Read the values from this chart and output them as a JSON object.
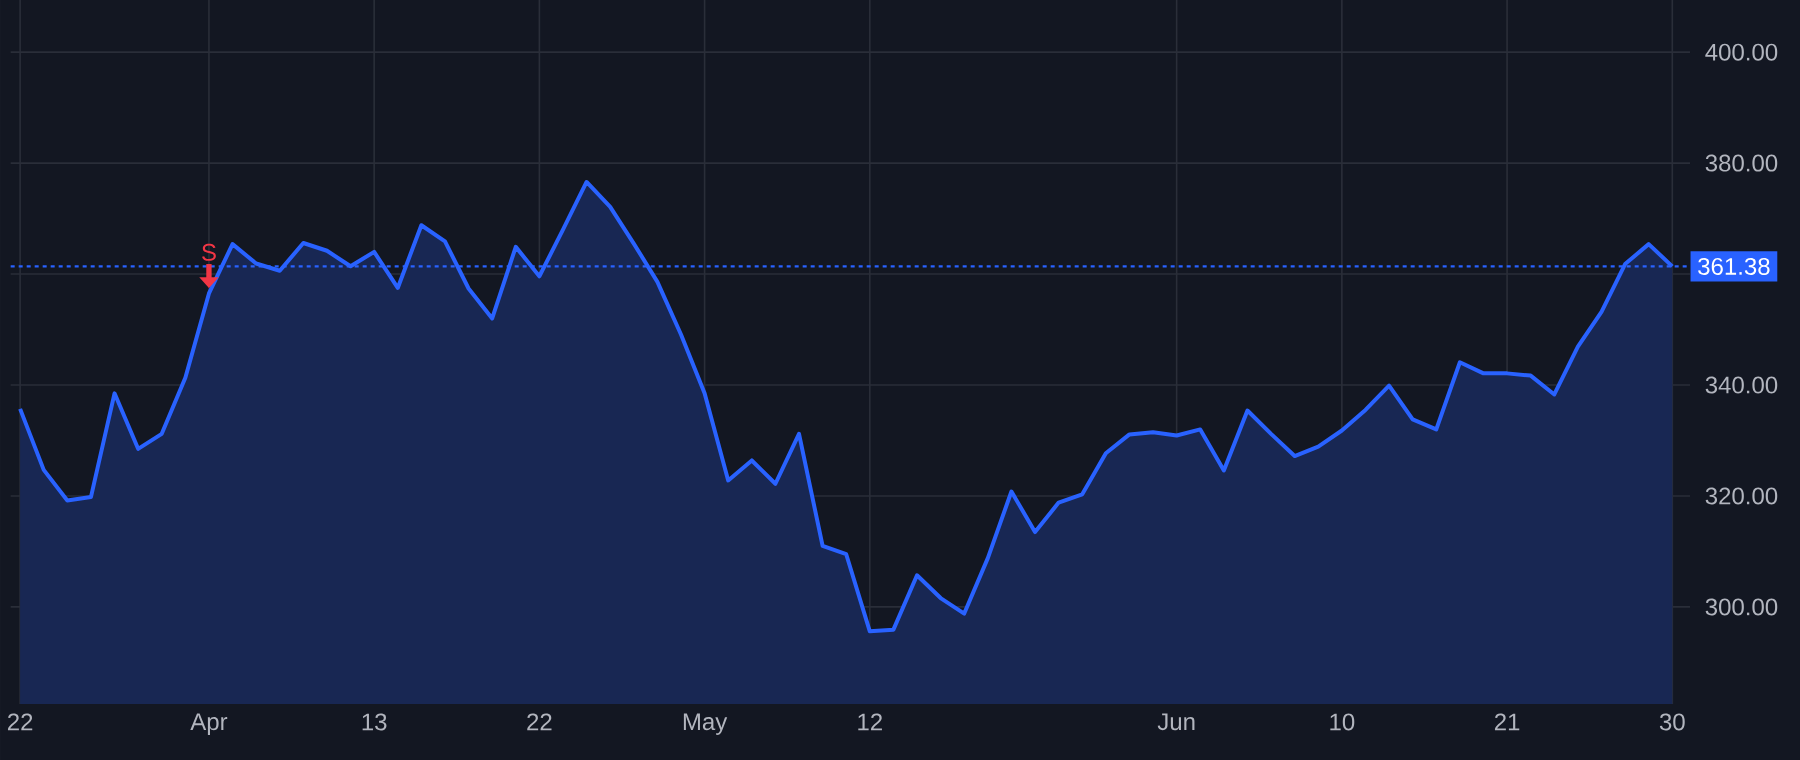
{
  "chart_data": {
    "type": "area",
    "categories": [
      "22",
      null,
      null,
      null,
      null,
      null,
      null,
      null,
      "Apr",
      null,
      null,
      null,
      null,
      null,
      null,
      "13",
      null,
      null,
      null,
      null,
      null,
      null,
      "22",
      null,
      null,
      null,
      null,
      null,
      null,
      "May",
      null,
      null,
      null,
      null,
      null,
      null,
      "12",
      null,
      null,
      null,
      null,
      null,
      null,
      null,
      null,
      null,
      null,
      null,
      null,
      "Jun",
      null,
      null,
      null,
      null,
      null,
      null,
      "10",
      null,
      null,
      null,
      null,
      null,
      null,
      "21",
      null,
      null,
      null,
      null,
      null,
      null,
      "30"
    ],
    "series": [
      {
        "color": "#2962ff",
        "values": [
          335.7,
          324.7,
          319.2,
          319.8,
          338.5,
          328.5,
          331.2,
          341.3,
          356.5,
          365.4,
          361.9,
          360.6,
          365.6,
          364.2,
          361.4,
          364.0,
          357.5,
          368.8,
          365.9,
          357.4,
          352.0,
          364.9,
          359.6,
          368.0,
          376.6,
          372.1,
          365.5,
          358.6,
          349.1,
          338.5,
          322.8,
          326.4,
          322.2,
          331.2,
          311.0,
          309.5,
          295.6,
          295.9,
          305.7,
          301.6,
          298.8,
          308.8,
          320.8,
          313.5,
          318.8,
          320.3,
          327.7,
          331.1,
          331.5,
          330.9,
          332.0,
          324.6,
          335.4,
          331.2,
          327.2,
          328.9,
          331.8,
          335.5,
          339.9,
          333.8,
          332.0,
          344.1,
          342.1,
          342.1,
          341.7,
          338.3,
          346.9,
          353.2,
          361.8,
          365.4,
          361.38
        ]
      }
    ],
    "ylim": [
      282.5,
      409.4
    ],
    "yticks": [
      {
        "value": 300,
        "label": "300.00"
      },
      {
        "value": 320,
        "label": "320.00"
      },
      {
        "value": 340,
        "label": "340.00"
      },
      {
        "value": 360,
        "label": null
      },
      {
        "value": 380,
        "label": "380.00"
      },
      {
        "value": 400,
        "label": "400.00"
      }
    ],
    "grid": true,
    "ref_lines": [
      {
        "axis": "y",
        "value": 361.38,
        "label": "361.38",
        "color": "#2962ff",
        "line_style": "dotted"
      }
    ],
    "annotations": [
      {
        "text": "S",
        "x": "Apr",
        "y": 357
      }
    ]
  }
}
